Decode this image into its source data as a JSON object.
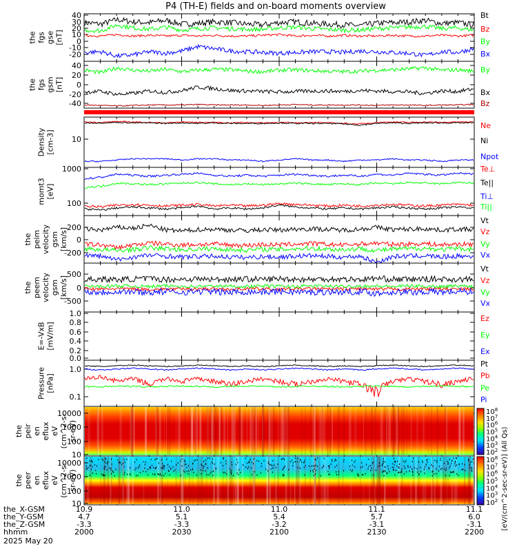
{
  "title": "P4 (TH-E) fields and on-board moments overview",
  "colors": {
    "black": "#000000",
    "red": "#ff0000",
    "green": "#00ff00",
    "blue": "#0000ff",
    "darkred": "#b00000"
  },
  "x_range": [
    "20:00",
    "22:00"
  ],
  "footer": {
    "row_labels": [
      "the_X-GSM",
      "the_Y-GSM",
      "the_Z-GSM",
      "hhmm",
      "2025 May 20"
    ],
    "columns": [
      {
        "x": "10.9",
        "y": "4.7",
        "z": "-3.3",
        "hhmm": "2000"
      },
      {
        "x": "11.0",
        "y": "5.1",
        "z": "-3.3",
        "hhmm": "2030"
      },
      {
        "x": "11.0",
        "y": "5.4",
        "z": "-3.2",
        "hhmm": "2100"
      },
      {
        "x": "11.1",
        "y": "5.7",
        "z": "-3.1",
        "hhmm": "2130"
      },
      {
        "x": "11.1",
        "y": "6.0",
        "z": "-3.1",
        "hhmm": "2200"
      }
    ]
  },
  "colorbar_label": "[eV/(cm^2-sec-sr-eV)] (All Qs)",
  "colorbar_ticks": [
    "10^8",
    "10^7",
    "10^6",
    "10^5",
    "10^4",
    "10^3",
    "10^2"
  ],
  "chart_data": [
    {
      "type": "line",
      "ylabel": [
        "the",
        "fgs",
        "gse",
        "[nT]"
      ],
      "yticks": [
        "40",
        "30",
        "20",
        "10",
        "0",
        "-10",
        "-20"
      ],
      "series": [
        {
          "name": "Bt",
          "color": "#000000",
          "values": [
            30,
            28,
            34,
            31,
            30,
            33,
            28,
            29,
            31,
            30,
            28,
            27,
            30,
            31,
            29,
            28,
            27,
            26,
            29,
            30,
            31,
            33,
            29,
            30,
            27
          ]
        },
        {
          "name": "Bz",
          "color": "#ff0000",
          "values": [
            13,
            12,
            14,
            12,
            13,
            12,
            13,
            12,
            13,
            12,
            12,
            13,
            14,
            12,
            13,
            12,
            13,
            12,
            12,
            13,
            12,
            12,
            13,
            12,
            13
          ]
        },
        {
          "name": "By",
          "color": "#00ff00",
          "values": [
            20,
            19,
            27,
            23,
            21,
            24,
            20,
            22,
            23,
            22,
            21,
            21,
            23,
            24,
            22,
            21,
            20,
            20,
            22,
            23,
            24,
            25,
            22,
            23,
            20
          ]
        },
        {
          "name": "Bx",
          "color": "#0000ff",
          "values": [
            -10,
            -9,
            -15,
            -13,
            -9,
            -11,
            -8,
            -2,
            -5,
            -8,
            -9,
            -10,
            -11,
            -10,
            -9,
            -9,
            -10,
            -8,
            -9,
            -10,
            -11,
            -14,
            -9,
            -10,
            -5
          ]
        }
      ]
    },
    {
      "type": "line",
      "ylabel": [
        "the",
        "fgs",
        "gsm",
        "[nT]"
      ],
      "yticks": [
        "40",
        "20",
        "0",
        "-20",
        "-40"
      ],
      "series": [
        {
          "name": "By",
          "color": "#00ff00",
          "values": [
            30,
            25,
            35,
            30,
            28,
            32,
            27,
            30,
            32,
            31,
            28,
            27,
            30,
            31,
            29,
            28,
            27,
            28,
            30,
            31,
            33,
            35,
            30,
            31,
            28
          ]
        },
        {
          "name": "Bx",
          "color": "#000000",
          "values": [
            -15,
            -14,
            -20,
            -18,
            -13,
            -16,
            -12,
            -5,
            -8,
            -12,
            -13,
            -14,
            -15,
            -14,
            -13,
            -13,
            -14,
            -12,
            -13,
            -14,
            -15,
            -18,
            -13,
            -14,
            -9
          ]
        },
        {
          "name": "Bz",
          "color": "#b00000",
          "values": [
            -42,
            -43,
            -44,
            -43,
            -42,
            -42,
            -42,
            -41,
            -42,
            -42,
            -42,
            -43,
            -42,
            -41,
            -42,
            -42,
            -42,
            -42,
            -43,
            -42,
            -42,
            -43,
            -42,
            -42,
            -41
          ]
        }
      ]
    },
    {
      "type": "line",
      "ylabel": [
        "Density",
        "[cm-3]"
      ],
      "yticks": [
        "10"
      ],
      "series": [
        {
          "name": "Ne",
          "color": "#ff0000",
          "values": [
            25,
            24,
            26,
            25,
            24,
            23,
            25,
            24,
            24,
            23,
            24,
            23,
            24,
            23,
            24,
            23,
            22,
            21,
            24,
            25,
            24,
            25,
            24,
            25,
            25
          ]
        },
        {
          "name": "Ni",
          "color": "#000000",
          "values": [
            23,
            23,
            24,
            23,
            23,
            22,
            23,
            22,
            23,
            22,
            22,
            22,
            23,
            22,
            22,
            22,
            21,
            19,
            22,
            23,
            22,
            23,
            23,
            23,
            23
          ]
        },
        {
          "name": "Npot",
          "color": "#0000ff",
          "values": [
            0.8,
            0.8,
            0.9,
            1.0,
            1.0,
            1.0,
            0.9,
            1.0,
            1.0,
            0.9,
            0.9,
            0.8,
            0.9,
            1.0,
            0.9,
            0.9,
            0.8,
            0.9,
            0.9,
            1.0,
            0.9,
            0.9,
            0.8,
            0.9,
            0.9
          ]
        }
      ]
    },
    {
      "type": "line",
      "ylabel": [
        "momt3",
        "[eV]"
      ],
      "yticks": [
        "1000",
        "100"
      ],
      "series": [
        {
          "name": "Te⊥",
          "color": "#ff0000",
          "values": [
            80,
            75,
            85,
            90,
            85,
            80,
            85,
            90,
            80,
            85,
            80,
            85,
            95,
            90,
            85,
            80,
            85,
            80,
            85,
            90,
            85,
            80,
            85,
            90,
            85
          ]
        },
        {
          "name": "Te||",
          "color": "#000000",
          "values": [
            65,
            60,
            70,
            75,
            70,
            65,
            70,
            80,
            65,
            70,
            65,
            70,
            85,
            75,
            70,
            65,
            70,
            65,
            70,
            75,
            70,
            65,
            70,
            75,
            70
          ]
        },
        {
          "name": "Ti⊥",
          "color": "#0000ff",
          "values": [
            550,
            600,
            750,
            700,
            650,
            700,
            750,
            800,
            700,
            650,
            700,
            650,
            700,
            750,
            700,
            650,
            700,
            650,
            750,
            700,
            800,
            750,
            700,
            800,
            750
          ]
        },
        {
          "name": "Ti||",
          "color": "#00ff00",
          "values": [
            300,
            320,
            400,
            380,
            360,
            380,
            400,
            420,
            380,
            360,
            380,
            360,
            380,
            400,
            380,
            360,
            380,
            360,
            400,
            380,
            420,
            400,
            380,
            420,
            400
          ]
        }
      ]
    },
    {
      "type": "line",
      "ylabel": [
        "the",
        "peim",
        "velocity",
        "gsm",
        "[km/s]"
      ],
      "yticks": [
        "200",
        "0",
        "-200"
      ],
      "series": [
        {
          "name": "Vt",
          "color": "#000000",
          "values": [
            180,
            170,
            200,
            190,
            220,
            170,
            160,
            175,
            180,
            170,
            165,
            175,
            170,
            180,
            185,
            175,
            170,
            180,
            200,
            175,
            180,
            185,
            170,
            180,
            175
          ]
        },
        {
          "name": "Vz",
          "color": "#ff0000",
          "values": [
            20,
            10,
            -20,
            10,
            30,
            20,
            10,
            15,
            20,
            10,
            5,
            15,
            10,
            20,
            25,
            15,
            10,
            20,
            30,
            15,
            20,
            25,
            10,
            20,
            15
          ]
        },
        {
          "name": "Vy",
          "color": "#00ff00",
          "values": [
            -30,
            -40,
            -50,
            -40,
            -20,
            -30,
            -40,
            -35,
            -30,
            -40,
            -45,
            -35,
            -40,
            -30,
            -25,
            -35,
            -40,
            -30,
            -50,
            -35,
            -30,
            -25,
            -40,
            -30,
            -35
          ]
        },
        {
          "name": "Vx",
          "color": "#0000ff",
          "values": [
            -100,
            -110,
            -150,
            -120,
            -100,
            -110,
            -120,
            -115,
            -110,
            -120,
            -125,
            -115,
            -120,
            -110,
            -105,
            -115,
            -120,
            -110,
            -180,
            -115,
            -110,
            -105,
            -120,
            -110,
            -115
          ]
        }
      ]
    },
    {
      "type": "line",
      "ylabel": [
        "the",
        "peem",
        "velocity",
        "gsm",
        "[km/s]"
      ],
      "yticks": [
        "500",
        "0",
        "-500"
      ],
      "series": [
        {
          "name": "Vt",
          "color": "#000000",
          "values": [
            300,
            310,
            290,
            320,
            330,
            300,
            310,
            320,
            300,
            310,
            320,
            300,
            330,
            310,
            300,
            320,
            310,
            300,
            340,
            310,
            300,
            320,
            310,
            300,
            310
          ]
        },
        {
          "name": "Vz",
          "color": "#ff0000",
          "values": [
            -50,
            -60,
            -40,
            -50,
            -70,
            -50,
            -60,
            -40,
            -50,
            -60,
            -40,
            -50,
            -60,
            -50,
            -40,
            -60,
            -50,
            -40,
            -70,
            -50,
            -60,
            -40,
            -50,
            -60,
            -50
          ]
        },
        {
          "name": "Vy",
          "color": "#00ff00",
          "values": [
            50,
            40,
            60,
            50,
            40,
            60,
            50,
            40,
            60,
            50,
            40,
            60,
            50,
            40,
            60,
            50,
            40,
            60,
            50,
            40,
            60,
            50,
            40,
            60,
            50
          ]
        },
        {
          "name": "Vx",
          "color": "#0000ff",
          "values": [
            -150,
            -170,
            -140,
            -160,
            -180,
            -150,
            -170,
            -140,
            -160,
            -180,
            -150,
            -170,
            -140,
            -160,
            -180,
            -150,
            -170,
            -140,
            -220,
            -160,
            -180,
            -150,
            -170,
            -140,
            -160
          ]
        }
      ]
    },
    {
      "type": "line",
      "ylabel": [
        "E=-VxB",
        "[mV/m]"
      ],
      "yticks": [
        "1.0",
        "0.8",
        "0.6",
        "0.4",
        "0.2",
        "0.0"
      ],
      "series": [
        {
          "name": "Ez",
          "color": "#ff0000",
          "values": []
        },
        {
          "name": "Ey",
          "color": "#00ff00",
          "values": []
        },
        {
          "name": "Ex",
          "color": "#0000ff",
          "values": []
        }
      ]
    },
    {
      "type": "line",
      "ylabel": [
        "Pressure",
        "[nPa]"
      ],
      "yticks": [
        "1.0",
        "0.1"
      ],
      "series": [
        {
          "name": "Pt",
          "color": "#000000",
          "values": [
            1.6,
            1.5,
            1.6,
            1.7,
            1.6,
            1.5,
            1.6,
            1.7,
            1.6,
            1.5,
            1.6,
            1.5,
            1.6,
            1.7,
            1.6,
            1.5,
            1.6,
            1.5,
            1.6,
            1.7,
            1.6,
            1.5,
            1.6,
            1.7,
            1.6
          ]
        },
        {
          "name": "Pb",
          "color": "#ff0000",
          "values": [
            0.5,
            0.6,
            0.4,
            0.5,
            0.3,
            0.5,
            0.4,
            0.5,
            0.4,
            0.3,
            0.4,
            0.5,
            0.4,
            0.3,
            0.4,
            0.5,
            0.4,
            0.3,
            0.15,
            0.4,
            0.5,
            0.4,
            0.3,
            0.4,
            0.5
          ]
        },
        {
          "name": "Pe",
          "color": "#00ff00",
          "values": [
            0.25,
            0.24,
            0.26,
            0.25,
            0.24,
            0.25,
            0.26,
            0.25,
            0.24,
            0.25,
            0.26,
            0.25,
            0.24,
            0.25,
            0.26,
            0.25,
            0.24,
            0.25,
            0.26,
            0.25,
            0.24,
            0.25,
            0.26,
            0.25,
            0.24
          ]
        },
        {
          "name": "Pi",
          "color": "#0000ff",
          "values": [
            1.2,
            1.1,
            1.2,
            1.3,
            1.2,
            1.1,
            1.2,
            1.3,
            1.2,
            1.1,
            1.2,
            1.1,
            1.2,
            1.3,
            1.2,
            1.1,
            1.2,
            1.1,
            1.2,
            1.3,
            1.2,
            1.1,
            1.2,
            1.3,
            1.2
          ]
        }
      ]
    },
    {
      "type": "heatmap",
      "ylabel": [
        "the",
        "peir",
        "en",
        "eflux",
        "eV",
        "(cm^2-s-",
        "sr-eV)"
      ],
      "yticks": [
        "10000",
        "1000",
        "100",
        "10"
      ]
    },
    {
      "type": "heatmap",
      "ylabel": [
        "the",
        "peer",
        "en",
        "eflux",
        "eV",
        "(cm^2-s-",
        "sr-eV)"
      ],
      "yticks": [
        "10000",
        "1000",
        "100",
        "10"
      ]
    }
  ]
}
